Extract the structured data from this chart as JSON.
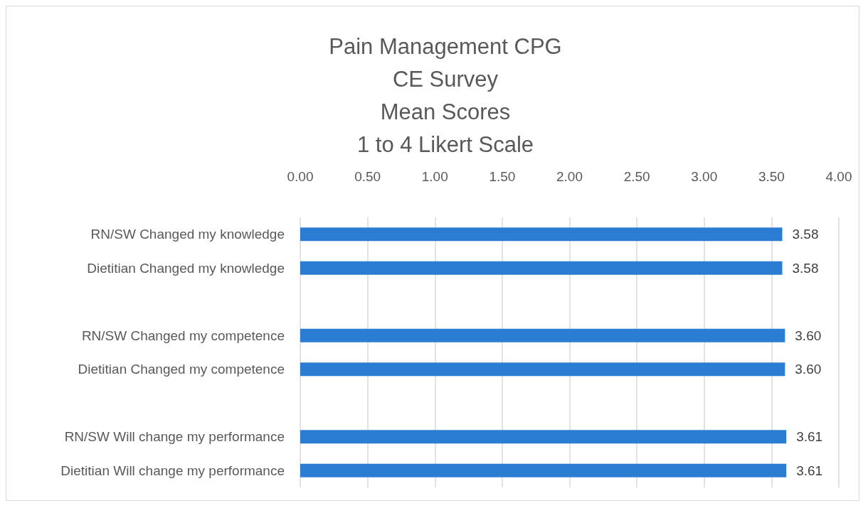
{
  "chart_data": {
    "type": "bar",
    "orientation": "horizontal",
    "title": "Pain Management CPG\nCE Survey\nMean Scores\n1 to 4 Likert Scale",
    "categories": [
      "RN/SW Changed my knowledge",
      "Dietitian Changed my knowledge",
      null,
      "RN/SW Changed my competence",
      "Dietitian Changed my competence",
      null,
      "RN/SW Will change my performance",
      "Dietitian Will change my performance"
    ],
    "values": [
      3.58,
      3.58,
      null,
      3.6,
      3.6,
      null,
      3.61,
      3.61
    ],
    "value_labels": [
      "3.58",
      "3.58",
      null,
      "3.60",
      "3.60",
      null,
      "3.61",
      "3.61"
    ],
    "color": "#2b7cd3",
    "xlim": [
      0,
      4
    ],
    "xticks": [
      {
        "value": 0,
        "label": "0.00"
      },
      {
        "value": 0.5,
        "label": "0.50"
      },
      {
        "value": 1,
        "label": "1.00"
      },
      {
        "value": 1.5,
        "label": "1.50"
      },
      {
        "value": 2,
        "label": "2.00"
      },
      {
        "value": 2.5,
        "label": "2.50"
      },
      {
        "value": 3,
        "label": "3.00"
      },
      {
        "value": 3.5,
        "label": "3.50"
      },
      {
        "value": 4,
        "label": "4.00"
      }
    ],
    "grid": "x"
  }
}
